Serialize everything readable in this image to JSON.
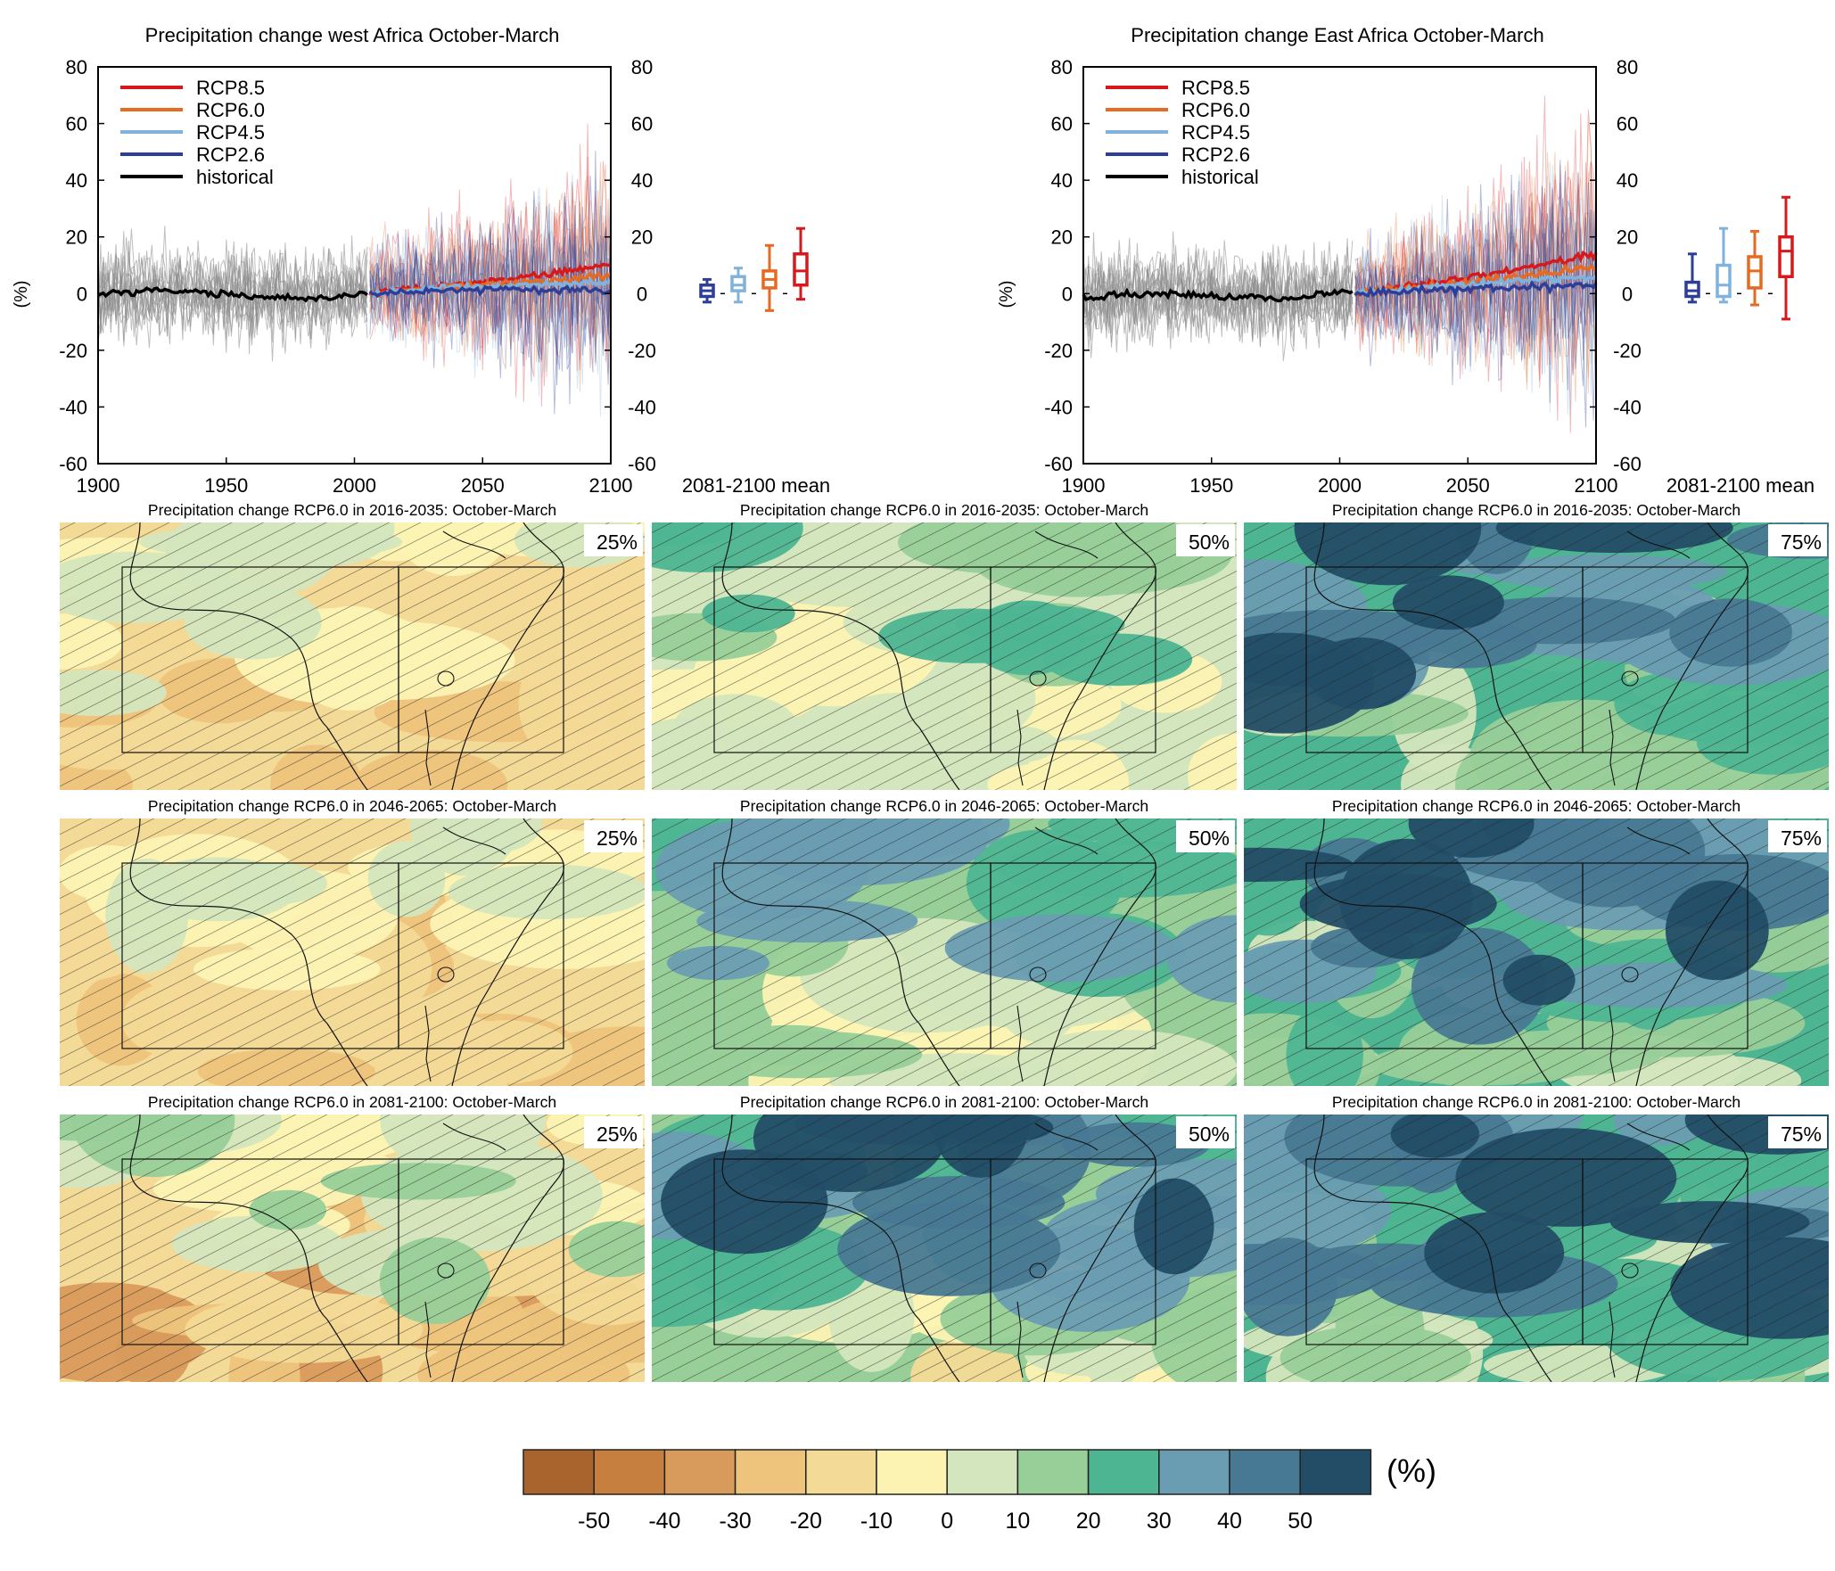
{
  "colors": {
    "rcp85": "#d7191c",
    "rcp60": "#e66a22",
    "rcp45": "#7fb2dc",
    "rcp26": "#2c3e97",
    "historical": "#000000",
    "historical_spread": "#8a8a8a"
  },
  "colorbar": {
    "unit": "(%)",
    "tick_labels": [
      "-50",
      "-40",
      "-30",
      "-20",
      "-10",
      "0",
      "10",
      "20",
      "30",
      "40",
      "50"
    ],
    "colors": [
      "#a9632c",
      "#c67f3f",
      "#d99b5c",
      "#eec47c",
      "#f3da96",
      "#fcf3b3",
      "#d4e6bd",
      "#98cf99",
      "#4eb592",
      "#6a9db2",
      "#487994",
      "#234d66"
    ]
  },
  "chart_data": [
    {
      "type": "line",
      "title": "Precipitation change west Africa October-March",
      "ylabel": "(%)",
      "xlim": [
        1900,
        2100
      ],
      "ylim": [
        -60,
        80
      ],
      "x_ticks": [
        "1900",
        "1950",
        "2000",
        "2050",
        "2100"
      ],
      "y_ticks": [
        "-60",
        "-40",
        "-20",
        "0",
        "20",
        "40",
        "60",
        "80"
      ],
      "legend": {
        "placement": "top-left",
        "entries": [
          "RCP8.5",
          "RCP6.0",
          "RCP4.5",
          "RCP2.6",
          "historical"
        ]
      },
      "series": [
        {
          "name": "historical",
          "x": [
            1900,
            1920,
            1940,
            1960,
            1980,
            2005
          ],
          "values": [
            0,
            1,
            0.5,
            -1,
            -2,
            0
          ]
        },
        {
          "name": "RCP2.6",
          "x": [
            2006,
            2030,
            2060,
            2100
          ],
          "values": [
            0,
            1,
            1.5,
            1
          ]
        },
        {
          "name": "RCP4.5",
          "x": [
            2006,
            2030,
            2060,
            2100
          ],
          "values": [
            0,
            2,
            3,
            4
          ]
        },
        {
          "name": "RCP6.0",
          "x": [
            2006,
            2030,
            2060,
            2100
          ],
          "values": [
            0,
            2,
            3.5,
            6
          ]
        },
        {
          "name": "RCP8.5",
          "x": [
            2006,
            2030,
            2060,
            2100
          ],
          "values": [
            0,
            2,
            5,
            10
          ]
        }
      ],
      "boxplot": {
        "label": "2081-2100 mean",
        "boxes": [
          {
            "name": "RCP2.6",
            "min": -3,
            "q1": -1,
            "median": 1,
            "q3": 3,
            "max": 5
          },
          {
            "name": "RCP4.5",
            "min": -3,
            "q1": 1,
            "median": 3,
            "q3": 6,
            "max": 9
          },
          {
            "name": "RCP6.0",
            "min": -6,
            "q1": 2,
            "median": 5,
            "q3": 8,
            "max": 17
          },
          {
            "name": "RCP8.5",
            "min": -2,
            "q1": 3,
            "median": 8,
            "q3": 14,
            "max": 23
          }
        ]
      }
    },
    {
      "type": "line",
      "title": "Precipitation change East Africa October-March",
      "ylabel": "(%)",
      "xlim": [
        1900,
        2100
      ],
      "ylim": [
        -60,
        80
      ],
      "x_ticks": [
        "1900",
        "1950",
        "2000",
        "2050",
        "2100"
      ],
      "y_ticks": [
        "-60",
        "-40",
        "-20",
        "0",
        "20",
        "40",
        "60",
        "80"
      ],
      "legend": {
        "placement": "top-left",
        "entries": [
          "RCP8.5",
          "RCP6.0",
          "RCP4.5",
          "RCP2.6",
          "historical"
        ]
      },
      "series": [
        {
          "name": "historical",
          "x": [
            1900,
            1930,
            1960,
            1980,
            2005
          ],
          "values": [
            -1,
            0,
            -1,
            -2,
            1
          ]
        },
        {
          "name": "RCP2.6",
          "x": [
            2006,
            2030,
            2060,
            2100
          ],
          "values": [
            0,
            1,
            2,
            3
          ]
        },
        {
          "name": "RCP4.5",
          "x": [
            2006,
            2030,
            2060,
            2100
          ],
          "values": [
            0,
            2,
            4,
            6
          ]
        },
        {
          "name": "RCP6.0",
          "x": [
            2006,
            2030,
            2060,
            2100
          ],
          "values": [
            0,
            2,
            5,
            9
          ]
        },
        {
          "name": "RCP8.5",
          "x": [
            2006,
            2030,
            2060,
            2100
          ],
          "values": [
            0,
            3,
            7,
            14
          ]
        }
      ],
      "boxplot": {
        "label": "2081-2100 mean",
        "boxes": [
          {
            "name": "RCP2.6",
            "min": -3,
            "q1": -1,
            "median": 1,
            "q3": 4,
            "max": 14
          },
          {
            "name": "RCP4.5",
            "min": -3,
            "q1": -1,
            "median": 3,
            "q3": 10,
            "max": 23
          },
          {
            "name": "RCP6.0",
            "min": -4,
            "q1": 2,
            "median": 8,
            "q3": 13,
            "max": 22
          },
          {
            "name": "RCP8.5",
            "min": -9,
            "q1": 6,
            "median": 15,
            "q3": 20,
            "max": 34
          }
        ]
      }
    },
    {
      "type": "heatmap",
      "maps": [
        {
          "title": "Precipitation change RCP6.0 in 2016-2035: October-March",
          "percentile": "25%",
          "bins": [
            -25,
            -15,
            -5,
            5
          ]
        },
        {
          "title": "Precipitation change RCP6.0 in 2016-2035: October-March",
          "percentile": "50%",
          "bins": [
            -5,
            5,
            15,
            25
          ]
        },
        {
          "title": "Precipitation change RCP6.0 in 2016-2035: October-March",
          "percentile": "75%",
          "bins": [
            5,
            15,
            25,
            35,
            45,
            55
          ]
        },
        {
          "title": "Precipitation change RCP6.0 in 2046-2065: October-March",
          "percentile": "25%",
          "bins": [
            -25,
            -15,
            -5,
            5
          ]
        },
        {
          "title": "Precipitation change RCP6.0 in 2046-2065: October-March",
          "percentile": "50%",
          "bins": [
            -5,
            5,
            15,
            25,
            35
          ]
        },
        {
          "title": "Precipitation change RCP6.0 in 2046-2065: October-March",
          "percentile": "75%",
          "bins": [
            5,
            15,
            25,
            35,
            45,
            55
          ]
        },
        {
          "title": "Precipitation change RCP6.0 in 2081-2100: October-March",
          "percentile": "25%",
          "bins": [
            -35,
            -25,
            -15,
            -5,
            5,
            15
          ]
        },
        {
          "title": "Precipitation change RCP6.0 in 2081-2100: October-March",
          "percentile": "50%",
          "bins": [
            -15,
            -5,
            5,
            15,
            25,
            35,
            45,
            55
          ]
        },
        {
          "title": "Precipitation change RCP6.0 in 2081-2100: October-March",
          "percentile": "75%",
          "bins": [
            5,
            15,
            25,
            35,
            45,
            55
          ]
        }
      ]
    }
  ]
}
